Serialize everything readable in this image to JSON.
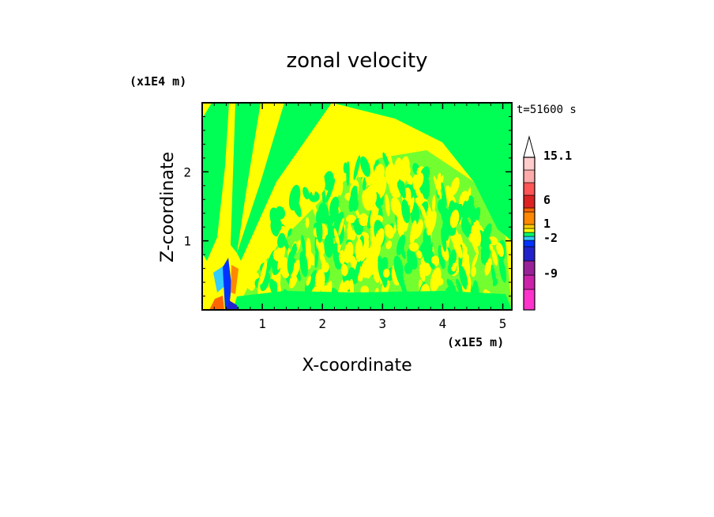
{
  "chart_data": {
    "type": "heatmap",
    "title": "zonal velocity",
    "xlabel": "X-coordinate",
    "ylabel": "Z-coordinate",
    "x_scale_label": "(x1E5 m)",
    "y_scale_label": "(x1E4 m)",
    "time_label": "t=51600 s",
    "xlim": [
      0,
      5.15
    ],
    "ylim": [
      0,
      3.0
    ],
    "x_ticks": [
      1,
      2,
      3,
      4,
      5
    ],
    "y_ticks": [
      1,
      2
    ],
    "colorbar": {
      "labels": [
        {
          "value": "15.1",
          "level": 15.1
        },
        {
          "value": "6",
          "level": 6
        },
        {
          "value": "1",
          "level": 1
        },
        {
          "value": "-2",
          "level": -2
        },
        {
          "value": "-9",
          "level": -9
        }
      ],
      "bins": [
        "#ff33cc",
        "#cc22aa",
        "#992299",
        "#2222cc",
        "#0033ff",
        "#33ccff",
        "#00ff66",
        "#ffff00",
        "#ffcc00",
        "#ff8800",
        "#ff6600",
        "#dd2222",
        "#ff5555",
        "#ffaaaa",
        "#ffcccc"
      ],
      "extend_max": true
    },
    "colors": {
      "background_positive": "#ffff00",
      "background_near_zero": "#00ff55",
      "negative": "#0033ff",
      "strong_positive": "#ff8800"
    }
  }
}
